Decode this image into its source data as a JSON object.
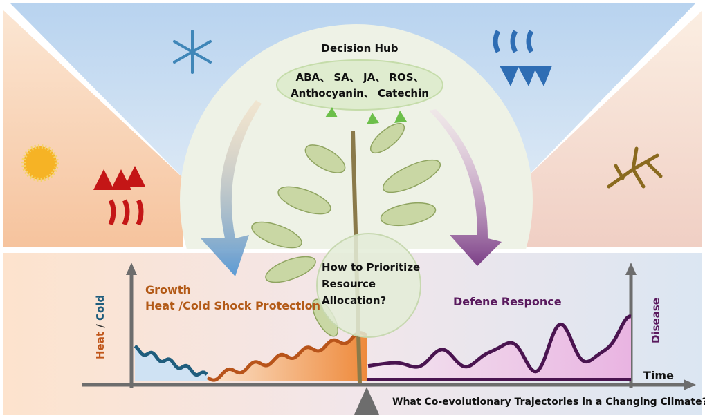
{
  "hub": {
    "title": "Decision Hub",
    "molecules": [
      "ABA、 SA、 JA、 ROS、",
      "Anthocyanin、 Catechin"
    ]
  },
  "center": {
    "question": [
      "How to Prioritize",
      "Resource",
      "Allocation?"
    ]
  },
  "left_panel": {
    "growth": "Growth",
    "protection": "Heat /Cold Shock Protection"
  },
  "right_panel": {
    "label": "Defene Responce"
  },
  "axes": {
    "left_label": [
      "Heat",
      "/",
      "Cold"
    ],
    "right_label": "Disease",
    "x_label": "Time"
  },
  "caption": "What Co-evolutionary Trajectories in a Changing Climate?"
}
